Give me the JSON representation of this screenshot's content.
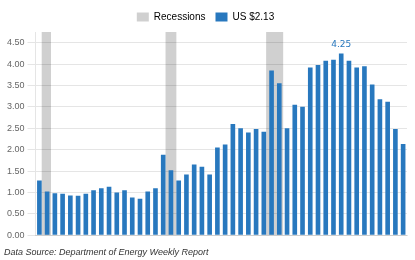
{
  "chart_data": {
    "type": "bar",
    "categories": [
      null,
      null,
      null,
      null,
      null,
      null,
      null,
      null,
      null,
      null,
      null,
      null,
      null,
      null,
      null,
      null,
      null,
      null,
      null,
      null,
      null,
      null,
      null,
      null,
      null,
      null,
      null,
      null,
      null,
      null,
      null,
      null,
      null,
      null,
      null,
      null,
      null,
      null,
      null,
      null,
      null,
      null,
      null,
      null,
      null,
      null,
      null,
      null
    ],
    "series": [
      {
        "name": "US $2.13",
        "color": "#2878be",
        "values": [
          1.28,
          1.02,
          0.98,
          0.97,
          0.93,
          0.92,
          0.97,
          1.05,
          1.1,
          1.13,
          1.0,
          1.05,
          0.88,
          0.85,
          1.02,
          1.1,
          1.88,
          1.52,
          1.28,
          1.42,
          1.65,
          1.6,
          1.42,
          2.05,
          2.12,
          2.6,
          2.5,
          2.4,
          2.48,
          2.42,
          3.85,
          3.55,
          2.5,
          3.05,
          3.0,
          3.92,
          3.98,
          4.08,
          4.1,
          4.25,
          4.08,
          3.92,
          3.95,
          3.52,
          3.18,
          3.12,
          2.48,
          2.13
        ]
      }
    ],
    "ylim": [
      0.0,
      4.75
    ],
    "yticks": [
      {
        "value": 0.0,
        "label": "0.00"
      },
      {
        "value": 0.5,
        "label": "0.50"
      },
      {
        "value": 1.0,
        "label": "1.00"
      },
      {
        "value": 1.5,
        "label": "1.50"
      },
      {
        "value": 2.0,
        "label": "2.00"
      },
      {
        "value": 2.5,
        "label": "2.50"
      },
      {
        "value": 3.0,
        "label": "3.00"
      },
      {
        "value": 3.5,
        "label": "3.50"
      },
      {
        "value": 4.0,
        "label": "4.00"
      },
      {
        "value": 4.5,
        "label": "4.50"
      }
    ],
    "grid": true,
    "legend": "top",
    "tick_labels": "y",
    "recession_name": "Recessions",
    "recession_color": "#d0d0d0",
    "recession_spans": [
      [
        0.3,
        1.5
      ],
      [
        16.3,
        17.7
      ],
      [
        29.3,
        31.5
      ]
    ],
    "annotations": [
      {
        "text": "4.25",
        "x": 39,
        "y": 4.25,
        "color": "#2878be"
      }
    ],
    "source": "Data Source: Department of Energy Weekly Report"
  }
}
